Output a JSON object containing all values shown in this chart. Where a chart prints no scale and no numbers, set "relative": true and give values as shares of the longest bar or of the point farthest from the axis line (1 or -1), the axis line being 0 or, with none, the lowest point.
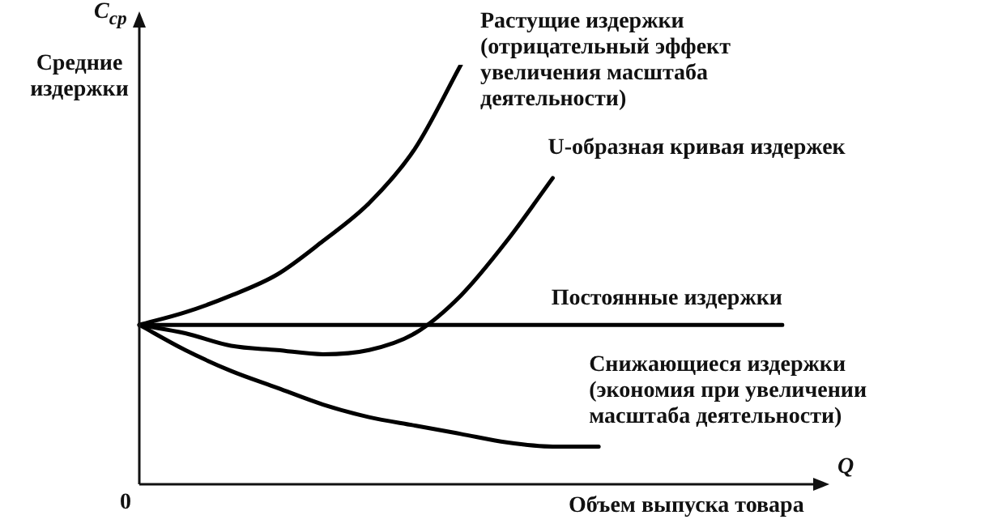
{
  "chart_data": {
    "type": "line",
    "relative": true,
    "ylabel": "Средние издержки",
    "xlabel": "Объем выпуска товара",
    "annotations": [
      "C$_{ср}$",
      "0",
      "Q"
    ],
    "categories": [
      null,
      null,
      null,
      null,
      null,
      null,
      null,
      null,
      null,
      null,
      null,
      null,
      null,
      null,
      null
    ],
    "series": [
      {
        "name": "Растущие издержки (отрицательный эффект увеличения масштаба деятельности)",
        "color": "#000000",
        "values": [
          0.38,
          0.41,
          0.45,
          0.5,
          0.58,
          0.67,
          0.8,
          1,
          null,
          null,
          null,
          null,
          null,
          null,
          null
        ]
      },
      {
        "name": "U-образная кривая издержек",
        "color": "#000000",
        "values": [
          0.38,
          0.36,
          0.33,
          0.32,
          0.31,
          0.32,
          0.36,
          0.45,
          0.58,
          0.73,
          null,
          null,
          null,
          null,
          null
        ]
      },
      {
        "name": "Постоянные издержки",
        "color": "#000000",
        "values": [
          0.38,
          0.38,
          0.38,
          0.38,
          0.38,
          0.38,
          0.38,
          0.38,
          0.38,
          0.38,
          0.38,
          0.38,
          0.38,
          0.38,
          0.38
        ]
      },
      {
        "name": "Снижающиеся издержки (экономия при увеличении масштаба деятельности)",
        "color": "#000000",
        "values": [
          0.38,
          0.32,
          0.27,
          0.23,
          0.19,
          0.16,
          0.14,
          0.12,
          0.1,
          0.09,
          0.09,
          null,
          null,
          null,
          null
        ]
      }
    ],
    "legend": false,
    "marker": "none",
    "line_style": "solid"
  }
}
